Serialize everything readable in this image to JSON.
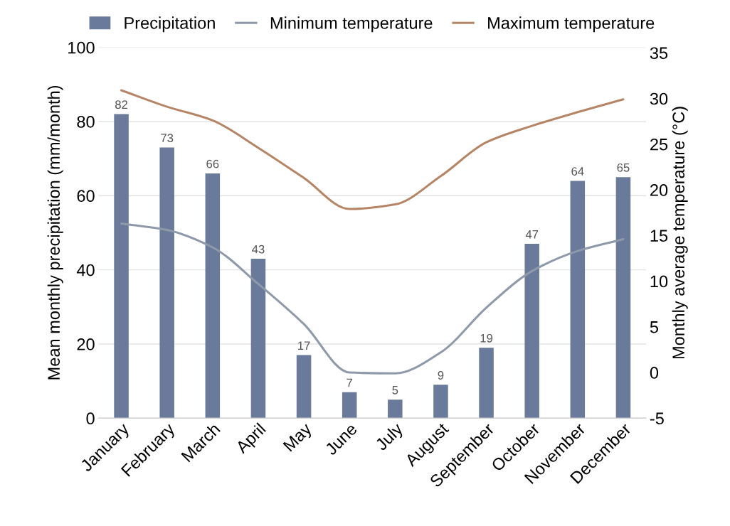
{
  "chart_data": {
    "type": "bar",
    "categories": [
      "January",
      "February",
      "March",
      "April",
      "May",
      "June",
      "July",
      "August",
      "September",
      "October",
      "November",
      "December"
    ],
    "series": [
      {
        "name": "Precipitation",
        "color": "#6a7a9a",
        "values": [
          82,
          73,
          66,
          43,
          17,
          7,
          5,
          9,
          19,
          47,
          64,
          65
        ],
        "value_labels": [
          "82",
          "73",
          "66",
          "43",
          "17",
          "7",
          "5",
          "9",
          "19",
          "47",
          "64",
          "65"
        ]
      },
      {
        "name": "Minimum temperature",
        "type": "line",
        "axis": "y2",
        "color": "#8e99aa",
        "values": [
          16.3,
          15.6,
          13.7,
          9.7,
          5.3,
          0.0,
          -0.1,
          2.2,
          7.1,
          11.1,
          13.3,
          14.6
        ]
      },
      {
        "name": "Maximum temperature",
        "type": "line",
        "axis": "y2",
        "color": "#b58565",
        "values": [
          30.9,
          29.1,
          27.6,
          24.6,
          21.3,
          17.9,
          18.4,
          21.5,
          25.2,
          27.0,
          28.5,
          29.9
        ]
      }
    ],
    "ylabel": "Mean monthly precipitation (mm/month)",
    "y2label": "Monthly average temperature (°C)",
    "ylim": [
      0,
      100
    ],
    "yticks": [
      0,
      20,
      40,
      60,
      80,
      100
    ],
    "y2lim": [
      -5,
      35.6
    ],
    "y2ticks": [
      -5,
      0,
      5,
      10,
      15,
      20,
      25,
      30,
      35
    ],
    "grid": "y",
    "legend": "top",
    "marker": "none",
    "line_style": "solid"
  }
}
